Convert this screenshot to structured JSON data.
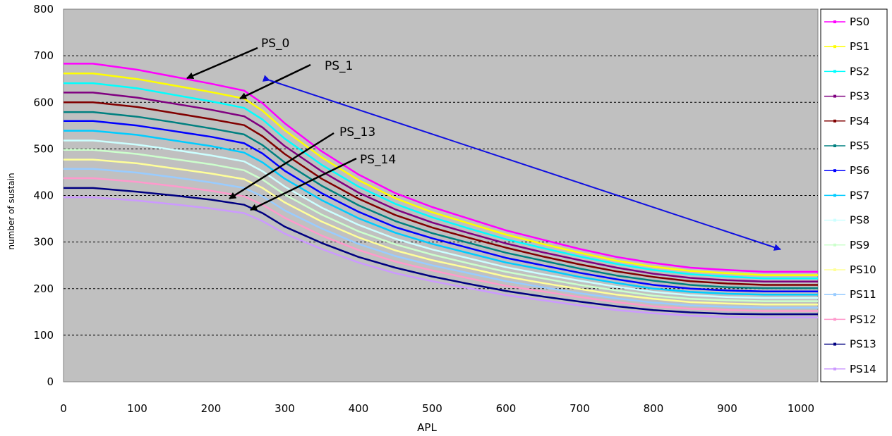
{
  "chart_data": {
    "type": "line",
    "title": "",
    "xlabel": "APL",
    "ylabel": "number of sustain",
    "xlim": [
      0,
      1023
    ],
    "ylim": [
      0,
      800
    ],
    "x_ticks": [
      "0",
      "100",
      "200",
      "300",
      "400",
      "500",
      "600",
      "700",
      "800",
      "900",
      "1000"
    ],
    "y_ticks": [
      "0",
      "100",
      "200",
      "300",
      "400",
      "500",
      "600",
      "700",
      "800"
    ],
    "grid": "horizontal dashed",
    "background": "#c0c0c0",
    "legend_position": "right",
    "x": [
      0,
      40,
      100,
      150,
      200,
      245,
      270,
      300,
      350,
      400,
      450,
      500,
      550,
      600,
      650,
      700,
      750,
      800,
      850,
      900,
      950,
      1023
    ],
    "series": [
      {
        "name": "PS0",
        "color": "#ff00ff",
        "values": [
          683,
          683,
          670,
          655,
          640,
          625,
          598,
          555,
          495,
          445,
          405,
          375,
          350,
          325,
          305,
          285,
          268,
          255,
          245,
          240,
          236,
          236
        ]
      },
      {
        "name": "PS1",
        "color": "#ffff00",
        "values": [
          662,
          662,
          650,
          636,
          622,
          608,
          582,
          540,
          482,
          433,
          394,
          364,
          340,
          316,
          296,
          277,
          260,
          247,
          238,
          233,
          229,
          229
        ]
      },
      {
        "name": "PS2",
        "color": "#00ffff",
        "values": [
          641,
          641,
          630,
          616,
          602,
          588,
          563,
          522,
          466,
          419,
          382,
          353,
          329,
          306,
          287,
          269,
          253,
          240,
          231,
          226,
          222,
          222
        ]
      },
      {
        "name": "PS3",
        "color": "#800080",
        "values": [
          621,
          621,
          610,
          597,
          584,
          570,
          546,
          506,
          452,
          406,
          370,
          342,
          319,
          297,
          278,
          261,
          245,
          232,
          223,
          218,
          215,
          215
        ]
      },
      {
        "name": "PS4",
        "color": "#800000",
        "values": [
          600,
          600,
          590,
          577,
          564,
          551,
          527,
          489,
          436,
          393,
          358,
          331,
          309,
          288,
          269,
          252,
          237,
          225,
          216,
          211,
          208,
          208
        ]
      },
      {
        "name": "PS5",
        "color": "#008080",
        "values": [
          579,
          579,
          569,
          557,
          544,
          531,
          508,
          471,
          421,
          379,
          345,
          319,
          298,
          277,
          260,
          243,
          228,
          217,
          208,
          203,
          201,
          201
        ]
      },
      {
        "name": "PS6",
        "color": "#0000ff",
        "values": [
          560,
          560,
          550,
          538,
          526,
          512,
          490,
          453,
          405,
          365,
          332,
          308,
          287,
          266,
          250,
          234,
          220,
          208,
          200,
          196,
          194,
          194
        ]
      },
      {
        "name": "PS7",
        "color": "#00ccff",
        "values": [
          539,
          539,
          530,
          518,
          506,
          492,
          471,
          436,
          390,
          351,
          320,
          296,
          276,
          256,
          241,
          225,
          212,
          200,
          193,
          189,
          187,
          187
        ]
      },
      {
        "name": "PS8",
        "color": "#ccffff",
        "values": [
          518,
          518,
          509,
          498,
          486,
          473,
          452,
          419,
          374,
          337,
          307,
          284,
          265,
          246,
          231,
          217,
          204,
          193,
          186,
          182,
          180,
          180
        ]
      },
      {
        "name": "PS9",
        "color": "#ccffcc",
        "values": [
          498,
          498,
          489,
          478,
          467,
          454,
          434,
          402,
          359,
          323,
          295,
          273,
          254,
          236,
          222,
          208,
          196,
          185,
          178,
          175,
          173,
          173
        ]
      },
      {
        "name": "PS10",
        "color": "#ffff99",
        "values": [
          477,
          477,
          469,
          458,
          447,
          435,
          416,
          385,
          344,
          310,
          282,
          261,
          244,
          226,
          212,
          199,
          187,
          178,
          171,
          168,
          166,
          166
        ]
      },
      {
        "name": "PS11",
        "color": "#99ccff",
        "values": [
          457,
          457,
          449,
          439,
          428,
          416,
          398,
          368,
          329,
          296,
          270,
          250,
          233,
          216,
          203,
          190,
          179,
          170,
          164,
          161,
          159,
          159
        ]
      },
      {
        "name": "PS12",
        "color": "#ff99cc",
        "values": [
          437,
          437,
          429,
          420,
          410,
          398,
          380,
          352,
          314,
          283,
          258,
          239,
          222,
          206,
          194,
          182,
          171,
          162,
          157,
          154,
          152,
          152
        ]
      },
      {
        "name": "PS13",
        "color": "#000080",
        "values": [
          416,
          416,
          408,
          400,
          391,
          380,
          362,
          333,
          298,
          268,
          245,
          226,
          210,
          195,
          183,
          172,
          162,
          154,
          149,
          146,
          145,
          145
        ]
      },
      {
        "name": "PS14",
        "color": "#cc99ff",
        "values": [
          396,
          396,
          389,
          381,
          372,
          362,
          345,
          318,
          285,
          256,
          233,
          216,
          201,
          186,
          175,
          164,
          154,
          147,
          142,
          139,
          138,
          138
        ]
      }
    ],
    "annotations": [
      {
        "text": "PS_0"
      },
      {
        "text": "PS_1"
      },
      {
        "text": "PS_13"
      },
      {
        "text": "PS_14"
      }
    ]
  }
}
